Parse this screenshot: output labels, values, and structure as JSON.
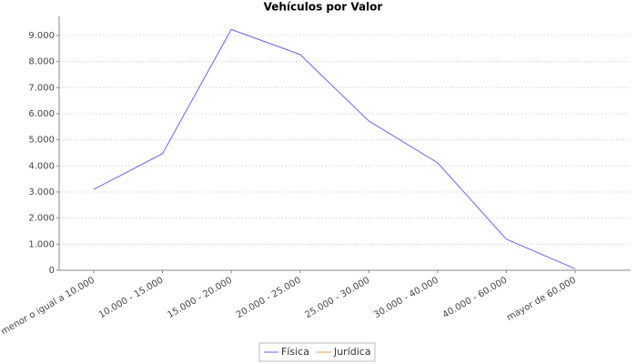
{
  "chart_data": {
    "type": "line",
    "title": "Vehículos por Valor",
    "categories": [
      "menor o igual a 10.000",
      "10.000 - 15.000",
      "15.000 - 20.000",
      "20.000 - 25.000",
      "25.000 - 30.000",
      "30.000 - 40.000",
      "40.000 - 60.000",
      "mayor de 60.000"
    ],
    "series": [
      {
        "name": "Física",
        "color": "#6666ee",
        "values": [
          3100,
          4470,
          9230,
          8270,
          5720,
          4120,
          1190,
          60
        ]
      },
      {
        "name": "Jurídica",
        "color": "#e8a040",
        "values": [
          null,
          null,
          null,
          null,
          null,
          null,
          null,
          null
        ]
      }
    ],
    "ylim": [
      0,
      9730
    ],
    "yticks": [
      0,
      {
        "value": 1000,
        "label": "1.000"
      },
      {
        "value": 2000,
        "label": "2.000"
      },
      {
        "value": 3000,
        "label": "3.000"
      },
      {
        "value": 4000,
        "label": "4.000"
      },
      {
        "value": 5000,
        "label": "5.000"
      },
      {
        "value": 6000,
        "label": "6.000"
      },
      {
        "value": 7000,
        "label": "7.000"
      },
      {
        "value": 8000,
        "label": "8.000"
      },
      {
        "value": 9000,
        "label": "9.000"
      }
    ],
    "grid": true,
    "legend": "bottom"
  }
}
